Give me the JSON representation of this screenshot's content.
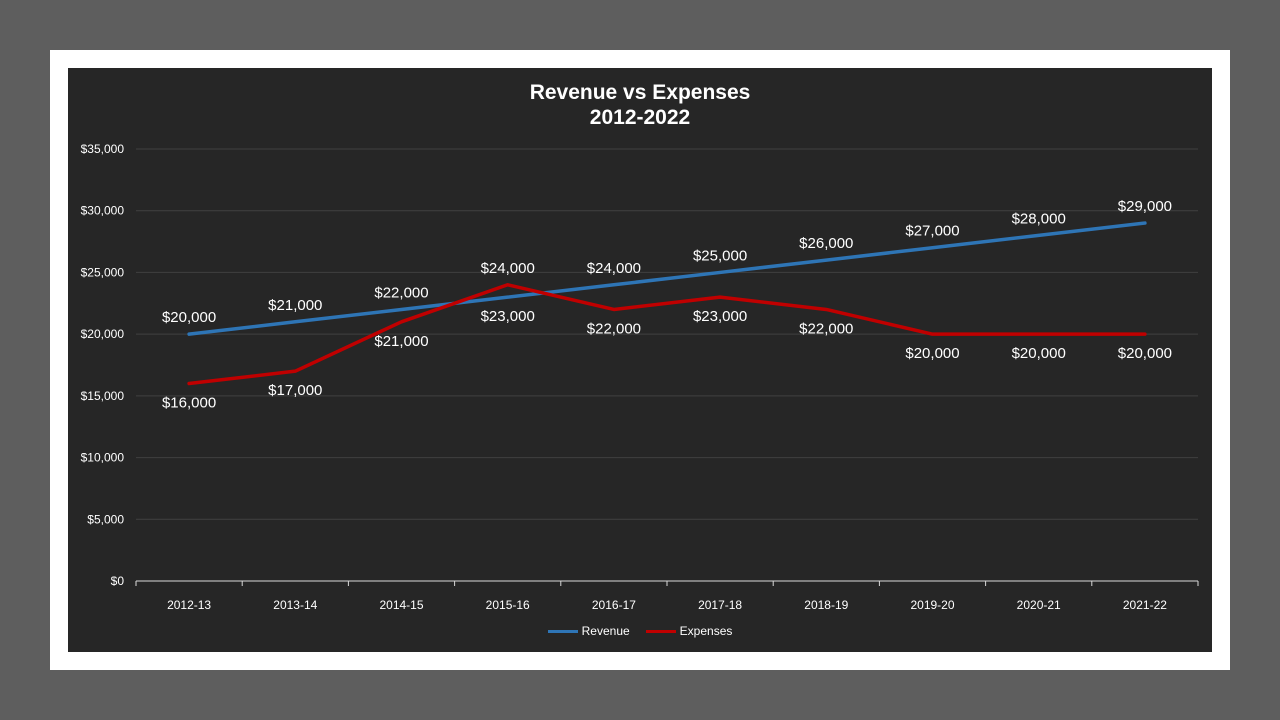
{
  "chart_data": {
    "type": "line",
    "title": "Revenue vs Expenses",
    "subtitle": "2012-2022",
    "xlabel": "",
    "ylabel": "",
    "categories": [
      "2012-13",
      "2013-14",
      "2014-15",
      "2015-16",
      "2016-17",
      "2017-18",
      "2018-19",
      "2019-20",
      "2020-21",
      "2021-22"
    ],
    "y_ticks": [
      0,
      5000,
      10000,
      15000,
      20000,
      25000,
      30000,
      35000
    ],
    "y_tick_labels": [
      "$0",
      "$5,000",
      "$10,000",
      "$15,000",
      "$20,000",
      "$25,000",
      "$30,000",
      "$35,000"
    ],
    "ylim": [
      0,
      35000
    ],
    "grid": true,
    "legend_position": "bottom",
    "series": [
      {
        "name": "Revenue",
        "color": "#2e75b6",
        "values": [
          20000,
          21000,
          22000,
          23000,
          24000,
          25000,
          26000,
          27000,
          28000,
          29000
        ],
        "labels": [
          "$20,000",
          "$21,000",
          "$22,000",
          "$23,000",
          "$24,000",
          "$25,000",
          "$26,000",
          "$27,000",
          "$28,000",
          "$29,000"
        ],
        "label_side": [
          "above",
          "above",
          "above",
          "below",
          "above",
          "above",
          "above",
          "above",
          "above",
          "above"
        ]
      },
      {
        "name": "Expenses",
        "color": "#c00000",
        "values": [
          16000,
          17000,
          21000,
          24000,
          22000,
          23000,
          22000,
          20000,
          20000,
          20000
        ],
        "labels": [
          "$16,000",
          "$17,000",
          "$21,000",
          "$24,000",
          "$22,000",
          "$23,000",
          "$22,000",
          "$20,000",
          "$20,000",
          "$20,000"
        ],
        "label_side": [
          "below",
          "below",
          "below",
          "above",
          "below",
          "below",
          "below",
          "below",
          "below",
          "below"
        ]
      }
    ]
  }
}
